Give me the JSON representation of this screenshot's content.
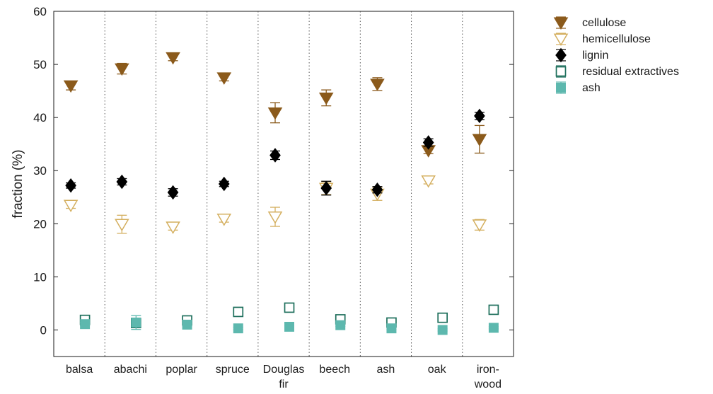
{
  "chart_data": {
    "type": "scatter",
    "title": "",
    "xlabel": "",
    "ylabel": "fraction (%)",
    "ylim": [
      -5,
      60
    ],
    "yticks": [
      0,
      10,
      20,
      30,
      40,
      50,
      60
    ],
    "grid": "vertical dotted separators between categories",
    "legend_position": "top-right, outside plot",
    "categories": [
      {
        "lines": [
          "balsa"
        ]
      },
      {
        "lines": [
          "abachi"
        ]
      },
      {
        "lines": [
          "poplar"
        ]
      },
      {
        "lines": [
          "spruce"
        ]
      },
      {
        "lines": [
          "Douglas",
          "fir"
        ]
      },
      {
        "lines": [
          "beech"
        ]
      },
      {
        "lines": [
          "ash"
        ]
      },
      {
        "lines": [
          "oak"
        ]
      },
      {
        "lines": [
          "iron-",
          "wood"
        ]
      }
    ],
    "series": [
      {
        "name": "cellulose",
        "marker": "triangle-down-filled",
        "color": "#8B5A1B",
        "values": [
          46.0,
          49.2,
          51.3,
          47.5,
          40.9,
          43.7,
          46.3,
          33.8,
          35.9
        ],
        "err": [
          0.8,
          1.0,
          0.6,
          0.6,
          1.9,
          1.5,
          1.2,
          0.6,
          2.6
        ]
      },
      {
        "name": "hemicellulose",
        "marker": "triangle-down-open",
        "color": "#D4AF5F",
        "values": [
          23.5,
          19.9,
          19.4,
          20.9,
          21.3,
          26.7,
          25.6,
          28.1,
          19.8
        ],
        "err": [
          0.6,
          1.7,
          0.6,
          0.6,
          1.8,
          1.2,
          1.2,
          0.6,
          1.0
        ]
      },
      {
        "name": "lignin",
        "marker": "diamond-filled",
        "color": "#000000",
        "values": [
          27.2,
          27.9,
          25.9,
          27.5,
          32.9,
          26.7,
          26.4,
          35.3,
          40.3
        ],
        "err": [
          0.5,
          0.6,
          0.7,
          0.5,
          0.8,
          1.3,
          0.6,
          0.7,
          0.7
        ]
      },
      {
        "name": "residual extractives",
        "marker": "square-open",
        "color": "#1E6F5C",
        "values": [
          1.9,
          1.3,
          1.8,
          3.4,
          4.2,
          2.0,
          1.4,
          2.3,
          3.8
        ],
        "err": [
          0.4,
          0.4,
          0.4,
          0.4,
          0.4,
          0.4,
          0.3,
          0.5,
          0.6
        ]
      },
      {
        "name": "ash",
        "marker": "square-filled",
        "color": "#5DB8AE",
        "values": [
          1.1,
          1.4,
          1.0,
          0.3,
          0.6,
          0.9,
          0.3,
          0.0,
          0.4
        ],
        "err": [
          0.3,
          1.3,
          0.3,
          0.2,
          0.2,
          0.2,
          0.2,
          0.2,
          0.2
        ]
      }
    ]
  }
}
